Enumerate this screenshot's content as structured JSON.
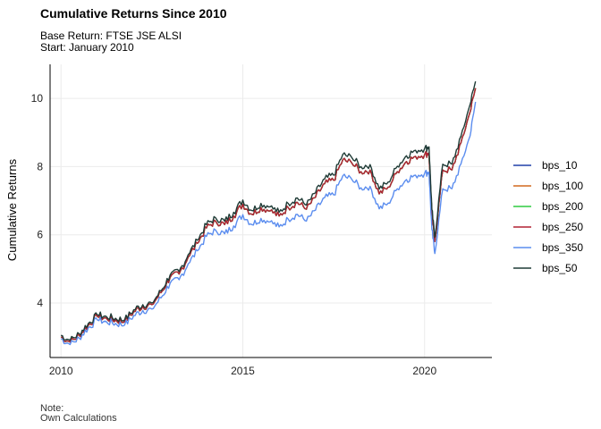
{
  "title": "Cumulative Returns Since 2010",
  "subtitle_lines": [
    "Base Return: FTSE JSE ALSI",
    "Start: January 2010"
  ],
  "caption_lines": [
    "Note:",
    "Own Calculations"
  ],
  "chart_data": {
    "type": "line",
    "title": "Cumulative Returns Since 2010",
    "xlabel": "",
    "ylabel": "Cumulative Returns",
    "xlim": [
      2009.7,
      2021.85
    ],
    "ylim": [
      2.4,
      11.0
    ],
    "x_ticks": [
      2010,
      2015,
      2020
    ],
    "y_ticks": [
      4,
      6,
      8,
      10
    ],
    "grid": true,
    "legend_position": "right",
    "x": [
      2010.0,
      2010.25,
      2010.5,
      2010.75,
      2011.0,
      2011.25,
      2011.5,
      2011.75,
      2012.0,
      2012.25,
      2012.5,
      2012.75,
      2013.0,
      2013.25,
      2013.5,
      2013.75,
      2014.0,
      2014.25,
      2014.5,
      2014.75,
      2015.0,
      2015.25,
      2015.5,
      2015.75,
      2016.0,
      2016.25,
      2016.5,
      2016.75,
      2017.0,
      2017.25,
      2017.5,
      2017.75,
      2018.0,
      2018.25,
      2018.5,
      2018.75,
      2019.0,
      2019.25,
      2019.5,
      2019.75,
      2020.0,
      2020.12,
      2020.2,
      2020.28,
      2020.5,
      2020.75,
      2021.0,
      2021.25,
      2021.4
    ],
    "series": [
      {
        "name": "bps_10",
        "color": "#2140A8",
        "values": [
          3.0,
          2.85,
          3.05,
          3.35,
          3.6,
          3.55,
          3.5,
          3.45,
          3.75,
          3.9,
          3.95,
          4.3,
          4.75,
          4.85,
          5.35,
          5.75,
          6.2,
          6.4,
          6.3,
          6.55,
          6.9,
          6.6,
          6.8,
          6.7,
          6.55,
          6.8,
          6.95,
          6.75,
          7.1,
          7.5,
          7.6,
          8.2,
          8.1,
          7.85,
          7.9,
          7.2,
          7.4,
          7.85,
          8.15,
          8.3,
          8.35,
          8.4,
          6.6,
          5.8,
          7.9,
          7.9,
          8.7,
          9.6,
          10.3
        ]
      },
      {
        "name": "bps_100",
        "color": "#D2691E",
        "values": [
          3.0,
          2.85,
          3.05,
          3.35,
          3.6,
          3.55,
          3.5,
          3.45,
          3.75,
          3.9,
          3.95,
          4.3,
          4.75,
          4.85,
          5.35,
          5.75,
          6.2,
          6.4,
          6.3,
          6.55,
          6.9,
          6.6,
          6.8,
          6.7,
          6.55,
          6.8,
          6.95,
          6.75,
          7.1,
          7.5,
          7.6,
          8.2,
          8.1,
          7.85,
          7.9,
          7.2,
          7.4,
          7.85,
          8.15,
          8.3,
          8.35,
          8.4,
          6.6,
          5.8,
          7.9,
          7.9,
          8.7,
          9.6,
          10.3
        ]
      },
      {
        "name": "bps_200",
        "color": "#2ECC40",
        "values": [
          3.0,
          2.85,
          3.05,
          3.35,
          3.6,
          3.55,
          3.5,
          3.45,
          3.75,
          3.9,
          3.95,
          4.3,
          4.75,
          4.85,
          5.35,
          5.75,
          6.2,
          6.4,
          6.3,
          6.55,
          6.9,
          6.6,
          6.8,
          6.7,
          6.55,
          6.8,
          6.95,
          6.75,
          7.1,
          7.5,
          7.6,
          8.2,
          8.1,
          7.85,
          7.9,
          7.2,
          7.4,
          7.85,
          8.15,
          8.3,
          8.35,
          8.4,
          6.6,
          5.8,
          7.9,
          7.9,
          8.7,
          9.6,
          10.3
        ]
      },
      {
        "name": "bps_250",
        "color": "#B22234",
        "values": [
          3.0,
          2.85,
          3.05,
          3.35,
          3.6,
          3.55,
          3.5,
          3.45,
          3.75,
          3.9,
          3.95,
          4.3,
          4.75,
          4.85,
          5.35,
          5.75,
          6.2,
          6.4,
          6.3,
          6.55,
          6.9,
          6.6,
          6.8,
          6.7,
          6.55,
          6.8,
          6.95,
          6.75,
          7.1,
          7.5,
          7.6,
          8.2,
          8.1,
          7.85,
          7.9,
          7.2,
          7.4,
          7.85,
          8.15,
          8.3,
          8.35,
          8.4,
          6.6,
          5.8,
          7.9,
          7.9,
          8.7,
          9.6,
          10.3
        ]
      },
      {
        "name": "bps_350",
        "color": "#5B8DEF",
        "values": [
          2.95,
          2.78,
          2.97,
          3.27,
          3.5,
          3.45,
          3.4,
          3.35,
          3.63,
          3.78,
          3.82,
          4.15,
          4.58,
          4.68,
          5.15,
          5.53,
          5.95,
          6.14,
          6.03,
          6.26,
          6.59,
          6.3,
          6.48,
          6.38,
          6.23,
          6.46,
          6.6,
          6.4,
          6.72,
          7.09,
          7.17,
          7.73,
          7.62,
          7.38,
          7.42,
          6.76,
          6.93,
          7.35,
          7.62,
          7.75,
          7.8,
          7.84,
          6.15,
          5.45,
          7.35,
          7.35,
          8.08,
          8.9,
          9.9
        ]
      },
      {
        "name": "bps_50",
        "color": "#1F3B36",
        "values": [
          3.05,
          2.9,
          3.1,
          3.4,
          3.65,
          3.6,
          3.55,
          3.5,
          3.8,
          3.95,
          4.0,
          4.35,
          4.82,
          4.92,
          5.42,
          5.84,
          6.3,
          6.5,
          6.4,
          6.66,
          7.02,
          6.71,
          6.92,
          6.82,
          6.66,
          6.92,
          7.08,
          6.87,
          7.23,
          7.64,
          7.75,
          8.36,
          8.26,
          8.0,
          8.06,
          7.34,
          7.55,
          8.01,
          8.32,
          8.48,
          8.53,
          8.58,
          6.74,
          5.92,
          8.07,
          8.07,
          8.89,
          9.82,
          10.5
        ]
      }
    ]
  }
}
